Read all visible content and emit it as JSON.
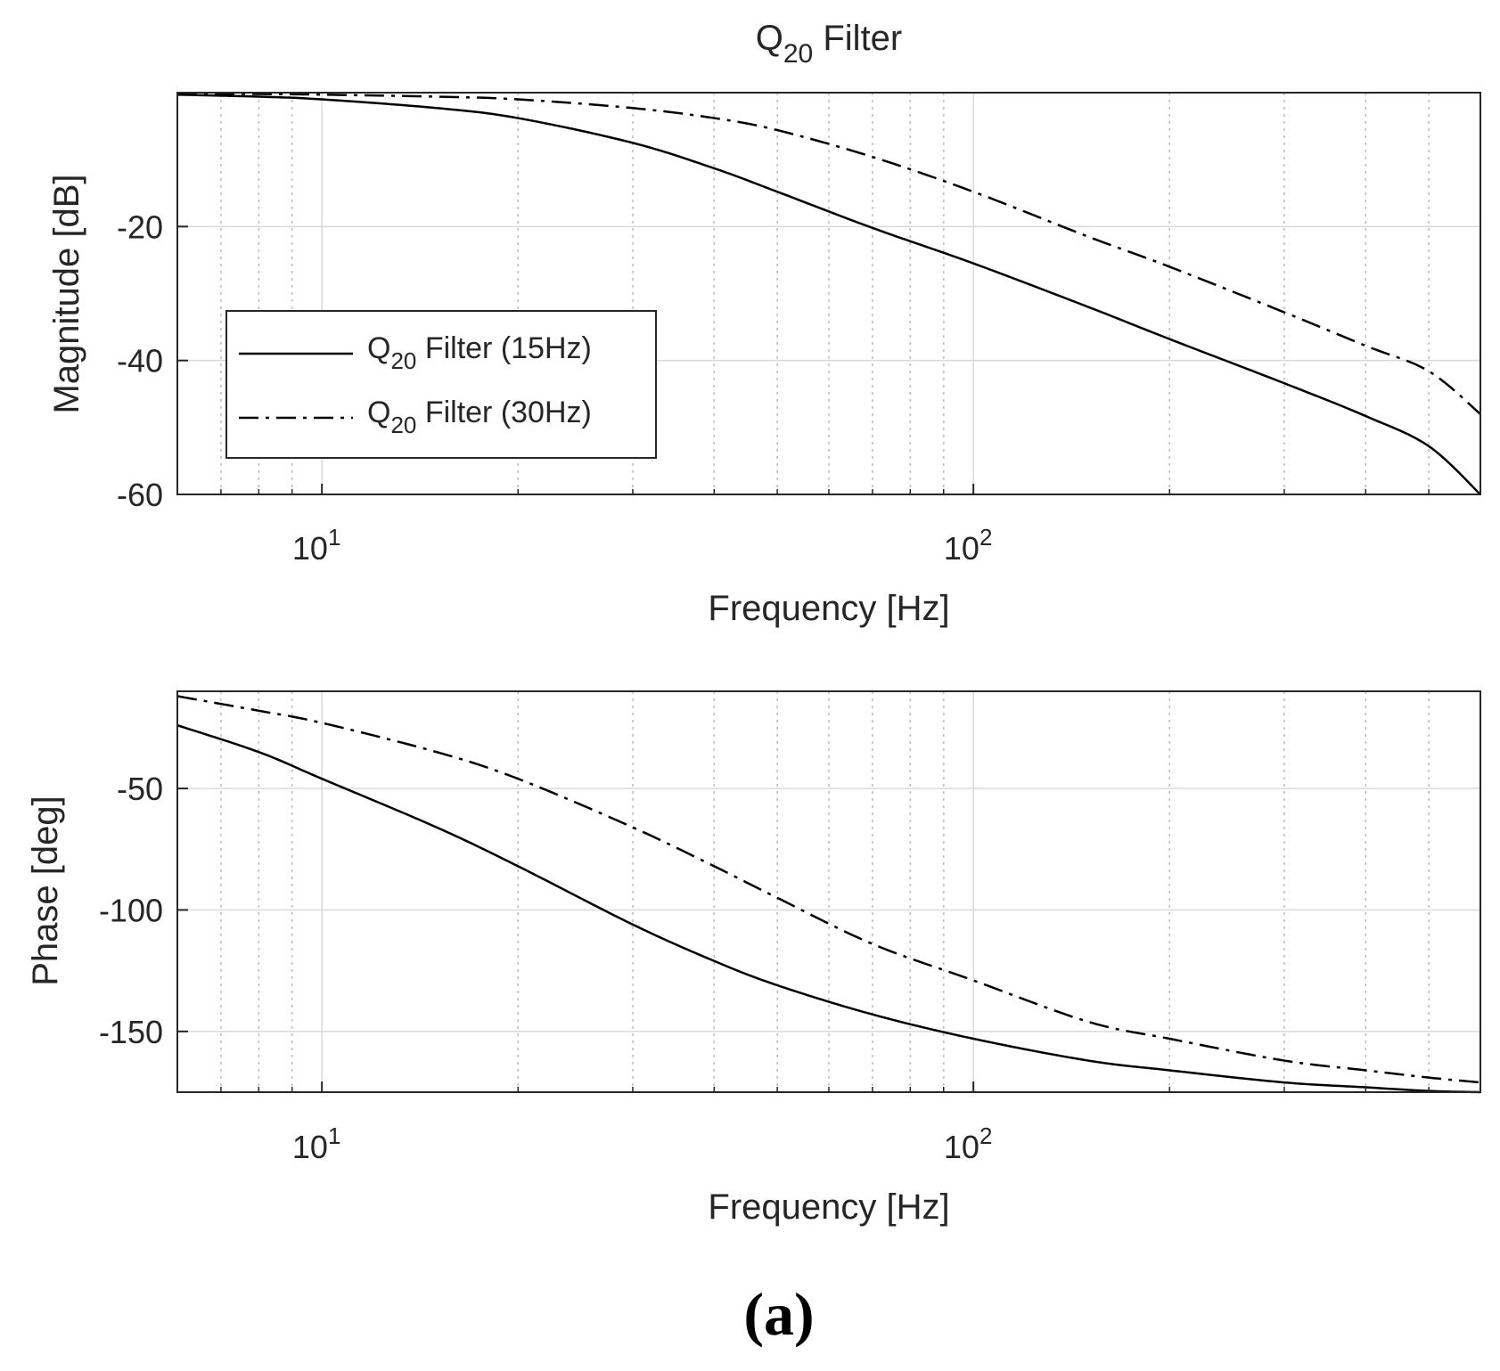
{
  "figure": {
    "caption": "(a)"
  },
  "colors": {
    "line": "#000000",
    "axis": "#262626",
    "grid_major": "#d9d9d9",
    "grid_minor": "#bfbfbf"
  },
  "chart_data": [
    {
      "type": "line",
      "title": "Q",
      "title_sub": "20",
      "title_suffix": " Filter",
      "xlabel": "Frequency [Hz]",
      "ylabel": "Magnitude [dB]",
      "xscale": "log",
      "xlim": [
        6,
        600
      ],
      "ylim": [
        -60,
        0
      ],
      "yticks": [
        -60,
        -40,
        -20
      ],
      "xticks": [
        {
          "value": 10,
          "base": "10",
          "exp": "1"
        },
        {
          "value": 100,
          "base": "10",
          "exp": "2"
        }
      ],
      "grid": true,
      "legend": {
        "position": "lower-left",
        "entries": [
          {
            "prefix": "Q",
            "sub": "20",
            "suffix": " Filter (15Hz)",
            "style": "solid"
          },
          {
            "prefix": "Q",
            "sub": "20",
            "suffix": " Filter (30Hz)",
            "style": "dashdot"
          }
        ]
      },
      "series": [
        {
          "name": "Q20 Filter (15Hz)",
          "style": "solid",
          "x": [
            6,
            8,
            10,
            15,
            20,
            30,
            40,
            50,
            70,
            100,
            150,
            200,
            300,
            400,
            500,
            600
          ],
          "y": [
            -0.3,
            -0.6,
            -1.0,
            -2.3,
            -3.8,
            -7.5,
            -11.3,
            -14.8,
            -20.2,
            -25.5,
            -32.0,
            -36.8,
            -43.4,
            -48.3,
            -52.8,
            -60.0
          ]
        },
        {
          "name": "Q20 Filter (30Hz)",
          "style": "dashdot",
          "x": [
            6,
            8,
            10,
            15,
            20,
            30,
            40,
            50,
            70,
            100,
            150,
            200,
            300,
            400,
            500,
            600
          ],
          "y": [
            -0.1,
            -0.2,
            -0.3,
            -0.6,
            -1.0,
            -2.3,
            -3.8,
            -5.6,
            -9.6,
            -14.8,
            -21.5,
            -26.0,
            -32.8,
            -37.8,
            -41.6,
            -48.0
          ]
        }
      ]
    },
    {
      "type": "line",
      "xlabel": "Frequency [Hz]",
      "ylabel": "Phase [deg]",
      "xscale": "log",
      "xlim": [
        6,
        600
      ],
      "ylim": [
        -175,
        -10
      ],
      "yticks": [
        -150,
        -100,
        -50
      ],
      "xticks": [
        {
          "value": 10,
          "base": "10",
          "exp": "1"
        },
        {
          "value": 100,
          "base": "10",
          "exp": "2"
        }
      ],
      "grid": true,
      "series": [
        {
          "name": "Q20 Filter (15Hz)",
          "style": "solid",
          "x": [
            6,
            8,
            10,
            15,
            20,
            30,
            40,
            50,
            70,
            100,
            150,
            200,
            300,
            400,
            500,
            600
          ],
          "y": [
            -24,
            -35,
            -46,
            -66,
            -82,
            -106,
            -121,
            -131,
            -143,
            -153,
            -162,
            -166,
            -171,
            -173,
            -174.5,
            -175
          ]
        },
        {
          "name": "Q20 Filter (30Hz)",
          "style": "dashdot",
          "x": [
            6,
            8,
            10,
            15,
            20,
            30,
            40,
            50,
            70,
            100,
            150,
            200,
            300,
            400,
            500,
            600
          ],
          "y": [
            -12,
            -18,
            -23,
            -35,
            -46,
            -66,
            -82,
            -95,
            -114,
            -129,
            -146,
            -153,
            -162,
            -166,
            -169,
            -171
          ]
        }
      ]
    }
  ]
}
